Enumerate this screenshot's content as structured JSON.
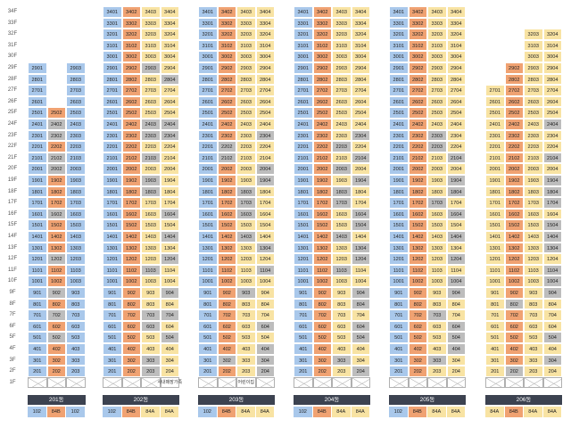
{
  "floors": [
    "34F",
    "33F",
    "32F",
    "31F",
    "30F",
    "29F",
    "28F",
    "27F",
    "26F",
    "25F",
    "24F",
    "23F",
    "22F",
    "21F",
    "20F",
    "19F",
    "18F",
    "17F",
    "16F",
    "15F",
    "14F",
    "13F",
    "12F",
    "11F",
    "10F",
    "9F",
    "8F",
    "7F",
    "6F",
    "5F",
    "4F",
    "3F",
    "2F",
    "1F"
  ],
  "colors": {
    "102": "#a9c8eb",
    "84B": "#f0a272",
    "84A": "#f8e3a3",
    "gray": "#bdbdbd"
  },
  "buildings": [
    {
      "name": "201동",
      "types": [
        "102",
        "84B",
        "102"
      ],
      "top_floors": [
        29,
        25,
        29
      ],
      "gray": [
        "2602",
        "2402",
        "2302",
        "2102",
        "2002",
        "1602",
        "1202",
        "0902",
        "0702",
        "0502"
      ],
      "b_override": {
        "25": "84B",
        "22": "84B",
        "12": "84B",
        "9": "84B",
        "6": "84B",
        "4": "84B",
        "3": "84B",
        "2": "84B"
      },
      "notes": []
    },
    {
      "name": "202동",
      "types": [
        "102",
        "84B",
        "84A",
        "84A"
      ],
      "top_floors": [
        34,
        34,
        34,
        34
      ],
      "gray": [
        "2903",
        "2804",
        "2403",
        "2404",
        "2303",
        "2304",
        "2103",
        "1903",
        "1803",
        "1604",
        "1404",
        "1204",
        "1103",
        "0904",
        "0704",
        "0703",
        "0603",
        "0504",
        "0303",
        "0203"
      ],
      "notes": [
        {
          "floor": 1,
          "col": 3,
          "text": "사내매장가족"
        }
      ]
    },
    {
      "name": "203동",
      "types": [
        "102",
        "84B",
        "84A",
        "84A"
      ],
      "top_floors": [
        34,
        34,
        34,
        34
      ],
      "gray": [
        "2304",
        "2202",
        "2102",
        "2004",
        "1904",
        "1803",
        "1703",
        "1603",
        "1403",
        "1304",
        "1104",
        "0903",
        "0604",
        "0404",
        "0302",
        "0304",
        "0204"
      ],
      "notes": [
        {
          "floor": 1,
          "col": 2,
          "text": "어린이집"
        }
      ]
    },
    {
      "name": "204동",
      "types": [
        "102",
        "84B",
        "84A",
        "84A"
      ],
      "top_floors": [
        34,
        34,
        34,
        34
      ],
      "gray": [
        "2304",
        "2203",
        "2104",
        "2003",
        "1904",
        "1803",
        "1703",
        "1604",
        "1504",
        "1403",
        "1304",
        "1204",
        "1103",
        "0904",
        "0804",
        "0604",
        "0504",
        "0303",
        "0204"
      ],
      "notes": []
    },
    {
      "name": "205동",
      "types": [
        "102",
        "84B",
        "84A",
        "84A"
      ],
      "top_floors": [
        34,
        34,
        34,
        34
      ],
      "gray": [
        "2303",
        "2203",
        "2104",
        "1904",
        "1804",
        "1703",
        "1604",
        "1404",
        "1204",
        "1004",
        "0904",
        "0703",
        "0604",
        "0504",
        "0404",
        "0303"
      ],
      "notes": []
    },
    {
      "name": "206동",
      "types": [
        "84A",
        "84B",
        "84A",
        "84A"
      ],
      "top_floors": [
        27,
        29,
        32,
        32
      ],
      "gray": [
        "2404",
        "2104",
        "1904",
        "1804",
        "1704",
        "1504",
        "1404",
        "1304",
        "1104",
        "1004",
        "0904",
        "0802",
        "0504",
        "0304",
        "0202"
      ],
      "notes": []
    }
  ],
  "labels": {
    "b201": "201동",
    "b202": "202동",
    "b203": "203동",
    "b204": "204동",
    "b205": "205동",
    "b206": "206동"
  }
}
